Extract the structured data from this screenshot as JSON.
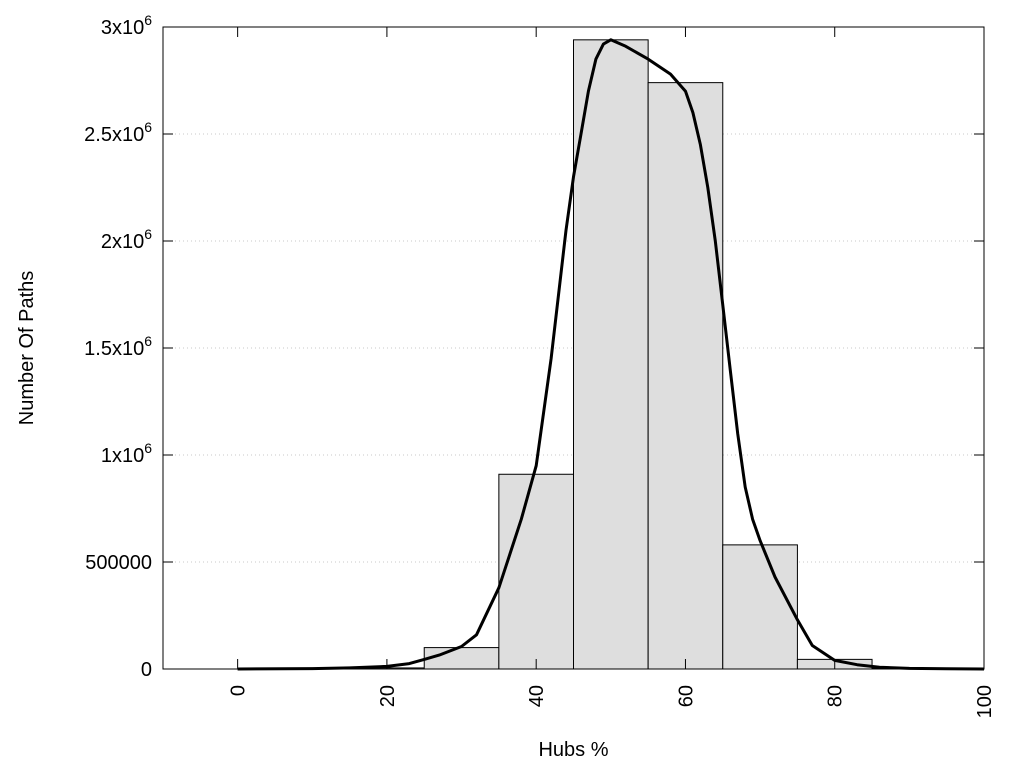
{
  "chart_data": {
    "type": "bar",
    "title": "",
    "xlabel": "Hubs %",
    "ylabel": "Number Of Paths",
    "xlim": [
      -10,
      100
    ],
    "ylim": [
      0,
      3000000
    ],
    "x_ticks": [
      0,
      20,
      40,
      60,
      80,
      100
    ],
    "y_ticks": [
      {
        "value": 0,
        "base": "0",
        "exp": ""
      },
      {
        "value": 500000,
        "base": "500000",
        "exp": ""
      },
      {
        "value": 1000000,
        "base": "1x10",
        "exp": "6"
      },
      {
        "value": 1500000,
        "base": "1.5x10",
        "exp": "6"
      },
      {
        "value": 2000000,
        "base": "2x10",
        "exp": "6"
      },
      {
        "value": 2500000,
        "base": "2.5x10",
        "exp": "6"
      },
      {
        "value": 3000000,
        "base": "3x10",
        "exp": "6"
      }
    ],
    "grid": "horizontal-dotted",
    "bin_width": 10,
    "bars": {
      "x": [
        0,
        10,
        20,
        30,
        40,
        50,
        60,
        70,
        80,
        90,
        100
      ],
      "values": [
        0,
        1000,
        5000,
        100000,
        910000,
        2940000,
        2740000,
        580000,
        45000,
        3000,
        0
      ]
    },
    "curve": {
      "x": [
        0,
        10,
        15,
        20,
        23,
        25,
        27,
        30,
        32,
        35,
        38,
        40,
        42,
        44,
        45,
        46,
        47,
        48,
        49,
        50,
        52,
        55,
        58,
        60,
        61,
        62,
        63,
        64,
        65,
        66,
        67,
        68,
        69,
        70,
        72,
        75,
        77,
        80,
        83,
        86,
        90,
        95,
        100
      ],
      "y": [
        0,
        2000,
        5000,
        12000,
        25000,
        45000,
        65000,
        105000,
        160000,
        380000,
        700000,
        950000,
        1450000,
        2050000,
        2300000,
        2500000,
        2700000,
        2850000,
        2920000,
        2940000,
        2910000,
        2850000,
        2780000,
        2700000,
        2600000,
        2450000,
        2250000,
        2000000,
        1700000,
        1400000,
        1100000,
        850000,
        700000,
        600000,
        430000,
        230000,
        110000,
        40000,
        20000,
        8000,
        3000,
        1000,
        0
      ]
    },
    "colors": {
      "bar_fill": "#dedede",
      "bar_stroke": "#000000",
      "curve": "#000000",
      "grid": "#c8c8c8"
    }
  }
}
